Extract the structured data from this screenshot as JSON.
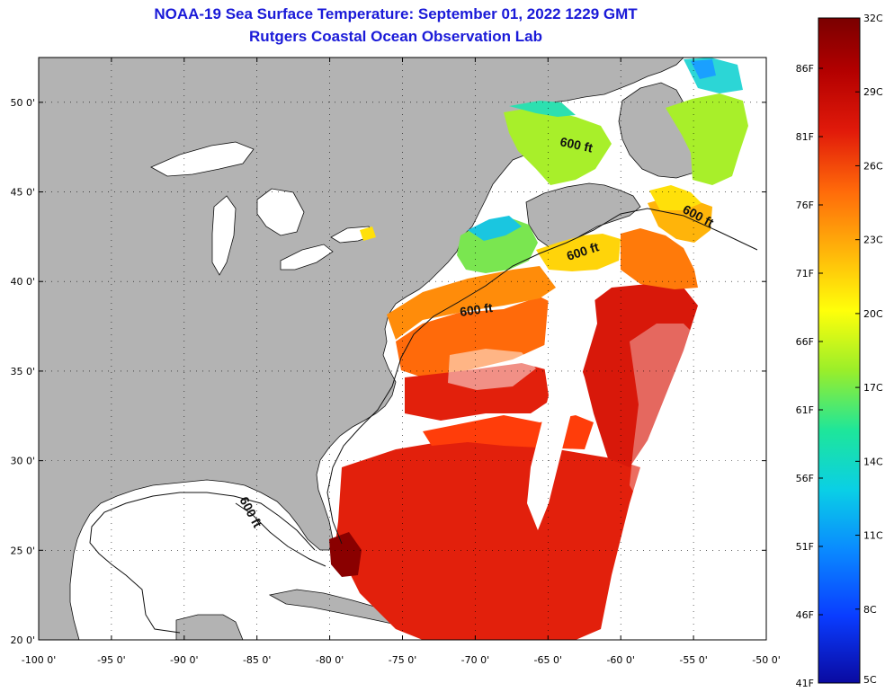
{
  "title": {
    "line1": "NOAA-19 Sea Surface Temperature:  September 01, 2022 1229 GMT",
    "line2": "Rutgers Coastal Ocean Observation Lab"
  },
  "map": {
    "lon_range": [
      -100,
      -50
    ],
    "lat_range": [
      20,
      52.5
    ],
    "lon_ticks": [
      "-100 0'",
      "-95 0'",
      "-90 0'",
      "-85 0'",
      "-80 0'",
      "-75 0'",
      "-70 0'",
      "-65 0'",
      "-60 0'",
      "-55 0'",
      "-50 0'"
    ],
    "lat_ticks": [
      {
        "lat": 50,
        "label": "50 0'"
      },
      {
        "lat": 45,
        "label": "45 0'"
      },
      {
        "lat": 40,
        "label": "40 0'"
      },
      {
        "lat": 35,
        "label": "35 0'"
      },
      {
        "lat": 30,
        "label": "30 0'"
      },
      {
        "lat": 25,
        "label": "25 0'"
      },
      {
        "lat": 20,
        "label": "20 0'"
      }
    ],
    "contour_label": "600 ft",
    "land_color": "#b3b3b3",
    "cloud_color": "#ffffff"
  },
  "colorbar": {
    "celsius_labels": [
      "32C",
      "29C",
      "26C",
      "23C",
      "20C",
      "17C",
      "14C",
      "11C",
      "8C",
      "5C"
    ],
    "fahrenheit_labels": [
      "86F",
      "81F",
      "76F",
      "71F",
      "66F",
      "61F",
      "56F",
      "51F",
      "46F",
      "41F"
    ],
    "colors": [
      "#7a0000",
      "#b30000",
      "#e11a0a",
      "#ff4b0a",
      "#ff8c0a",
      "#ffc80a",
      "#ffff0a",
      "#a8ef2a",
      "#36e07a",
      "#0acfd0",
      "#0a9aff",
      "#0a5aff",
      "#0a1ef0",
      "#0a0aa8"
    ]
  }
}
